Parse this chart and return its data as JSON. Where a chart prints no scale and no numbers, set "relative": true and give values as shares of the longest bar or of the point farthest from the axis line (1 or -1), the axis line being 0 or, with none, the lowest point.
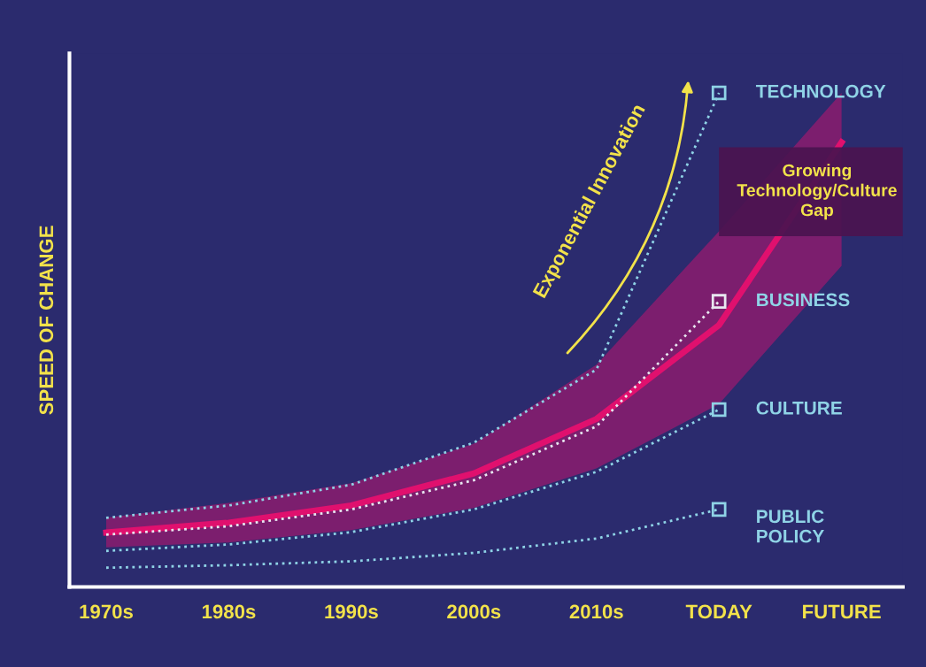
{
  "chart_data": {
    "type": "line",
    "relative": true,
    "ylabel": "SPEED OF CHANGE",
    "categories": [
      "1970s",
      "1980s",
      "1990s",
      "2000s",
      "2010s",
      "TODAY",
      "FUTURE"
    ],
    "series": [
      {
        "type": "line",
        "color": "#e0106e",
        "values": [
          0.11,
          0.13,
          0.165,
          0.23,
          0.34,
          0.53,
          0.9
        ],
        "lower": [
          0.08,
          0.09,
          0.115,
          0.16,
          0.24,
          0.37,
          0.65
        ],
        "upper": [
          0.14,
          0.17,
          0.21,
          0.29,
          0.45,
          0.72,
          1.0
        ]
      },
      {
        "name": "TECHNOLOGY",
        "color": "#8fd3e6",
        "line_style": "dotted",
        "values": [
          0.14,
          0.165,
          0.207,
          0.292,
          0.44,
          1.0,
          null
        ]
      },
      {
        "name": "BUSINESS",
        "color": "#e8e8f0",
        "line_style": "dotted",
        "values": [
          0.106,
          0.123,
          0.157,
          0.216,
          0.325,
          0.578,
          null
        ]
      },
      {
        "name": "CULTURE",
        "color": "#8fd3e6",
        "line_style": "dotted",
        "values": [
          0.073,
          0.086,
          0.111,
          0.157,
          0.233,
          0.359,
          null
        ]
      },
      {
        "name": "PUBLIC\nPOLICY",
        "color": "#8fd3e6",
        "line_style": "dotted",
        "values": [
          0.039,
          0.044,
          0.052,
          0.069,
          0.098,
          0.157,
          null
        ]
      }
    ],
    "annotations": [
      "Exponential Innovation",
      "Growing\nTechnology/Culture\nGap"
    ],
    "tick_labels": "x",
    "grid": false,
    "legend": false
  }
}
